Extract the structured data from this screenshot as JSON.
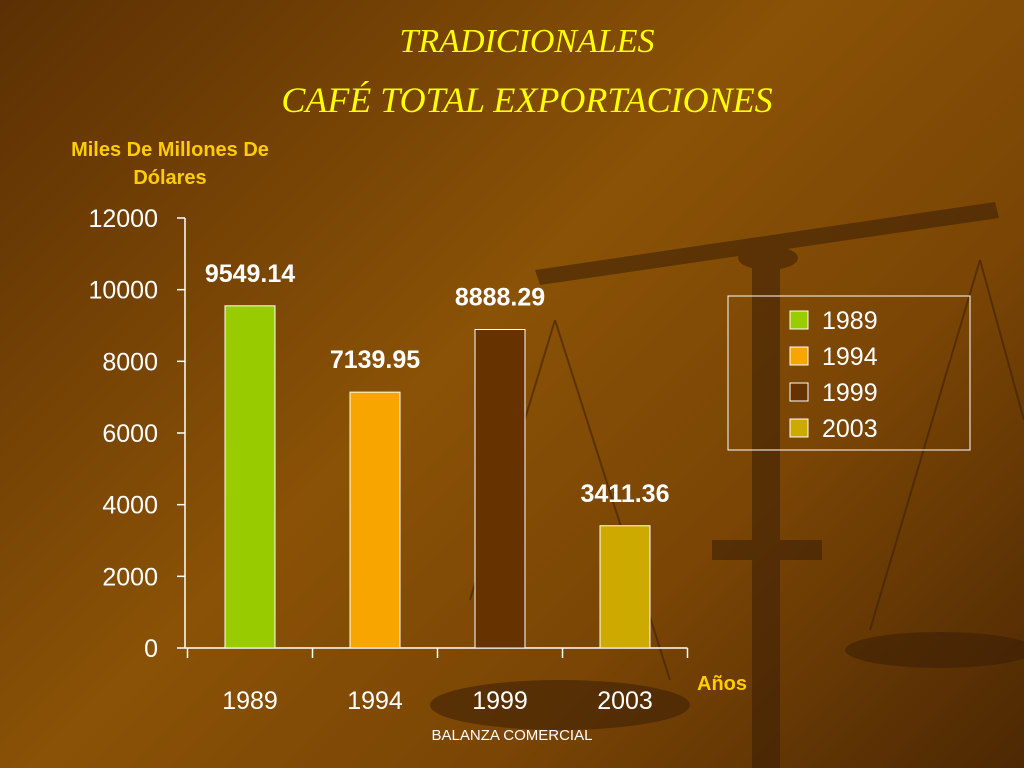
{
  "chart_data": {
    "type": "bar",
    "title": "TRADICIONALES",
    "subtitle": "CAFÉ TOTAL EXPORTACIONES",
    "y_label": "Miles De Millones De Dólares",
    "x_label": "Años",
    "categories": [
      "1989",
      "1994",
      "1999",
      "2003"
    ],
    "values": [
      9549.14,
      7139.95,
      8888.29,
      3411.36
    ],
    "colors": [
      "#99cc00",
      "#f8a500",
      "#663300",
      "#ccaa00"
    ],
    "ylim": [
      0,
      12000
    ],
    "yticks": [
      0,
      2000,
      4000,
      6000,
      8000,
      10000,
      12000
    ],
    "grid": false,
    "legend": "right"
  },
  "footer": "BALANZA COMERCIAL"
}
